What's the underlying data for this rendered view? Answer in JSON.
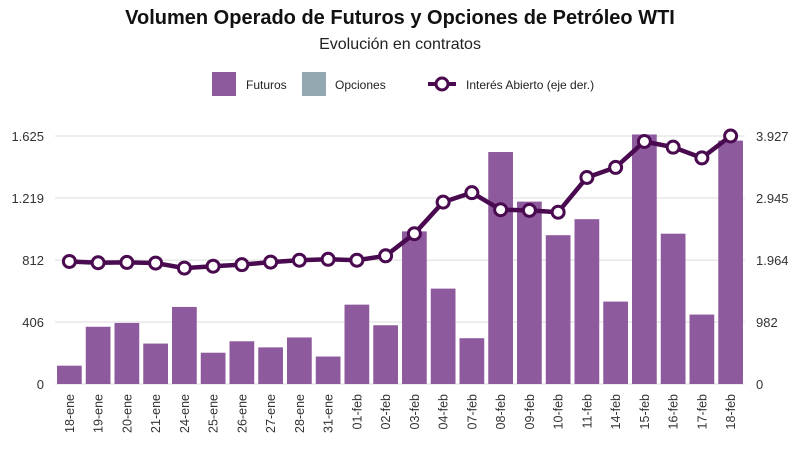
{
  "chart_data": {
    "type": "bar+line",
    "title": "Volumen Operado de Futuros y Opciones de Petróleo WTI",
    "subtitle": "Evolución en contratos",
    "categories": [
      "18-ene",
      "19-ene",
      "20-ene",
      "21-ene",
      "24-ene",
      "25-ene",
      "26-ene",
      "27-ene",
      "28-ene",
      "31-ene",
      "01-feb",
      "02-feb",
      "03-feb",
      "04-feb",
      "07-feb",
      "08-feb",
      "09-feb",
      "10-feb",
      "11-feb",
      "14-feb",
      "15-feb",
      "16-feb",
      "17-feb",
      "18-feb"
    ],
    "series": [
      {
        "name": "Futuros",
        "axis": "left",
        "kind": "bar",
        "color": "#8e5a9e",
        "values": [
          120,
          375,
          400,
          265,
          505,
          205,
          280,
          240,
          305,
          180,
          520,
          385,
          1000,
          625,
          300,
          1520,
          1195,
          975,
          1080,
          540,
          1635,
          985,
          455,
          1595
        ]
      },
      {
        "name": "Opciones",
        "axis": "left",
        "kind": "bar",
        "color": "#93a8b0",
        "values": [
          0,
          0,
          0,
          0,
          0,
          0,
          0,
          0,
          0,
          0,
          0,
          0,
          0,
          0,
          0,
          0,
          0,
          0,
          0,
          0,
          0,
          0,
          0,
          0
        ]
      },
      {
        "name": "Interés Abierto (eje der.)",
        "axis": "right",
        "kind": "line",
        "color": "#4a0a4f",
        "values": [
          1940,
          1920,
          1925,
          1915,
          1835,
          1865,
          1890,
          1930,
          1960,
          1975,
          1960,
          2030,
          2380,
          2880,
          3030,
          2760,
          2750,
          2720,
          3270,
          3430,
          3840,
          3750,
          3580,
          3927
        ]
      }
    ],
    "y_left": {
      "ticks": [
        "0",
        "406",
        "812",
        "1.219",
        "1.625"
      ],
      "tick_values": [
        0,
        406,
        812,
        1219,
        1625
      ],
      "ylim": [
        0,
        1625
      ]
    },
    "y_right": {
      "ticks": [
        "0",
        "982",
        "1.964",
        "2.945",
        "3.927"
      ],
      "tick_values": [
        0,
        982,
        1964,
        2945,
        3927
      ],
      "ylim": [
        0,
        3927
      ]
    },
    "grid": true,
    "legend_position": "top-center"
  }
}
